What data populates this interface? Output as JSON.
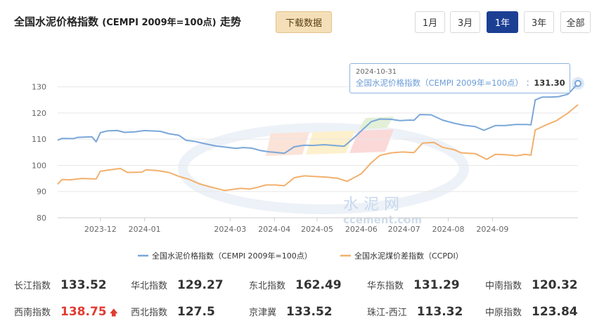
{
  "header": {
    "title": "全国水泥价格指数",
    "title_sub": "(CEMPI 2009年=100点)",
    "title_tail": "走势",
    "download_label": "下载数据",
    "ranges": [
      "1月",
      "3月",
      "1年",
      "3年",
      "全部"
    ],
    "active_range": "1年"
  },
  "tooltip": {
    "date": "2024-10-31",
    "series": "全国水泥价格指数（CEMPI 2009年=100点）",
    "value": "131.30"
  },
  "watermark": {
    "text1": "水 泥 网",
    "text2": "ccement.com"
  },
  "colors": {
    "cempi": "#7aa7d9",
    "ccpdi": "#f2b06d",
    "accent": "#1c3f94",
    "up": "#e03c31"
  },
  "chart_data": {
    "type": "line",
    "ylim": [
      80,
      135
    ],
    "yticks": [
      80,
      90,
      100,
      110,
      120,
      130
    ],
    "xlim": [
      "2023-11-01",
      "2024-10-31"
    ],
    "xticks": [
      "2023-12",
      "2024-01",
      "2024-03",
      "2024-04",
      "2024-05",
      "2024-06",
      "2024-07",
      "2024-08",
      "2024-09"
    ],
    "legend_position": "bottom",
    "series": [
      {
        "name": "全国水泥价格指数（CEMPI 2009年=100点）",
        "points": [
          [
            "2023-11-01",
            109.6
          ],
          [
            "2023-11-04",
            110.3
          ],
          [
            "2023-11-12",
            110.2
          ],
          [
            "2023-11-15",
            110.7
          ],
          [
            "2023-11-25",
            110.9
          ],
          [
            "2023-11-28",
            109.0
          ],
          [
            "2023-12-01",
            112.5
          ],
          [
            "2023-12-06",
            113.2
          ],
          [
            "2023-12-13",
            113.3
          ],
          [
            "2023-12-18",
            112.6
          ],
          [
            "2023-12-25",
            112.8
          ],
          [
            "2024-01-01",
            113.3
          ],
          [
            "2024-01-12",
            113.0
          ],
          [
            "2024-01-18",
            112.1
          ],
          [
            "2024-01-25",
            111.5
          ],
          [
            "2024-01-30",
            109.6
          ],
          [
            "2024-02-05",
            109.2
          ],
          [
            "2024-02-12",
            108.3
          ],
          [
            "2024-02-20",
            107.4
          ],
          [
            "2024-02-28",
            106.9
          ],
          [
            "2024-03-05",
            106.5
          ],
          [
            "2024-03-10",
            106.8
          ],
          [
            "2024-03-16",
            106.6
          ],
          [
            "2024-03-22",
            105.7
          ],
          [
            "2024-03-28",
            105.2
          ],
          [
            "2024-04-01",
            105.0
          ],
          [
            "2024-04-08",
            104.6
          ],
          [
            "2024-04-15",
            107.1
          ],
          [
            "2024-04-22",
            107.7
          ],
          [
            "2024-04-28",
            107.6
          ],
          [
            "2024-05-06",
            107.9
          ],
          [
            "2024-05-13",
            107.6
          ],
          [
            "2024-05-20",
            107.3
          ],
          [
            "2024-05-27",
            110.6
          ],
          [
            "2024-06-03",
            114.2
          ],
          [
            "2024-06-08",
            116.7
          ],
          [
            "2024-06-14",
            117.7
          ],
          [
            "2024-06-22",
            117.6
          ],
          [
            "2024-06-28",
            117.1
          ],
          [
            "2024-07-05",
            117.3
          ],
          [
            "2024-07-08",
            117.2
          ],
          [
            "2024-07-12",
            119.4
          ],
          [
            "2024-07-20",
            119.3
          ],
          [
            "2024-07-28",
            117.3
          ],
          [
            "2024-08-05",
            116.1
          ],
          [
            "2024-08-12",
            115.3
          ],
          [
            "2024-08-20",
            114.8
          ],
          [
            "2024-08-26",
            113.4
          ],
          [
            "2024-09-03",
            115.2
          ],
          [
            "2024-09-10",
            115.2
          ],
          [
            "2024-09-17",
            115.6
          ],
          [
            "2024-09-25",
            115.6
          ],
          [
            "2024-09-28",
            115.5
          ],
          [
            "2024-10-01",
            125.0
          ],
          [
            "2024-10-06",
            126.1
          ],
          [
            "2024-10-11",
            126.1
          ],
          [
            "2024-10-17",
            126.2
          ],
          [
            "2024-10-24",
            127.2
          ],
          [
            "2024-10-31",
            131.3
          ]
        ]
      },
      {
        "name": "全国水泥煤价差指数（CCPDI）",
        "points": [
          [
            "2023-11-01",
            92.8
          ],
          [
            "2023-11-04",
            94.6
          ],
          [
            "2023-11-10",
            94.5
          ],
          [
            "2023-11-18",
            95.0
          ],
          [
            "2023-11-28",
            94.8
          ],
          [
            "2023-12-01",
            97.8
          ],
          [
            "2023-12-08",
            98.3
          ],
          [
            "2023-12-15",
            98.8
          ],
          [
            "2023-12-20",
            97.3
          ],
          [
            "2023-12-30",
            97.4
          ],
          [
            "2024-01-02",
            98.3
          ],
          [
            "2024-01-10",
            98.0
          ],
          [
            "2024-01-18",
            97.3
          ],
          [
            "2024-01-25",
            95.8
          ],
          [
            "2024-02-01",
            94.7
          ],
          [
            "2024-02-08",
            93.0
          ],
          [
            "2024-02-16",
            91.8
          ],
          [
            "2024-02-26",
            90.4
          ],
          [
            "2024-03-08",
            91.2
          ],
          [
            "2024-03-15",
            91.0
          ],
          [
            "2024-03-20",
            91.6
          ],
          [
            "2024-03-26",
            92.5
          ],
          [
            "2024-04-02",
            92.5
          ],
          [
            "2024-04-08",
            92.2
          ],
          [
            "2024-04-15",
            95.3
          ],
          [
            "2024-04-22",
            96.0
          ],
          [
            "2024-04-28",
            95.8
          ],
          [
            "2024-05-08",
            95.5
          ],
          [
            "2024-05-15",
            95.1
          ],
          [
            "2024-05-22",
            93.9
          ],
          [
            "2024-06-01",
            96.8
          ],
          [
            "2024-06-08",
            101.0
          ],
          [
            "2024-06-14",
            103.8
          ],
          [
            "2024-06-22",
            104.8
          ],
          [
            "2024-06-30",
            105.1
          ],
          [
            "2024-07-08",
            104.9
          ],
          [
            "2024-07-14",
            108.5
          ],
          [
            "2024-07-22",
            108.8
          ],
          [
            "2024-07-28",
            106.9
          ],
          [
            "2024-08-05",
            106.0
          ],
          [
            "2024-08-10",
            104.8
          ],
          [
            "2024-08-20",
            104.5
          ],
          [
            "2024-08-28",
            102.3
          ],
          [
            "2024-09-03",
            104.2
          ],
          [
            "2024-09-10",
            104.1
          ],
          [
            "2024-09-18",
            103.7
          ],
          [
            "2024-09-24",
            104.2
          ],
          [
            "2024-09-28",
            103.9
          ],
          [
            "2024-10-01",
            113.5
          ],
          [
            "2024-10-08",
            115.3
          ],
          [
            "2024-10-16",
            117.1
          ],
          [
            "2024-10-24",
            120.0
          ],
          [
            "2024-10-31",
            123.2
          ]
        ]
      }
    ]
  },
  "stats": [
    {
      "label": "长江指数",
      "value": "133.52"
    },
    {
      "label": "华北指数",
      "value": "129.27"
    },
    {
      "label": "东北指数",
      "value": "162.49"
    },
    {
      "label": "华东指数",
      "value": "131.29"
    },
    {
      "label": "中南指数",
      "value": "120.32"
    },
    {
      "label": "西南指数",
      "value": "138.75",
      "up": true
    },
    {
      "label": "西北指数",
      "value": "127.5"
    },
    {
      "label": "京津冀",
      "value": "133.52"
    },
    {
      "label": "珠江-西江",
      "value": "113.32"
    },
    {
      "label": "中原指数",
      "value": "123.84"
    }
  ]
}
